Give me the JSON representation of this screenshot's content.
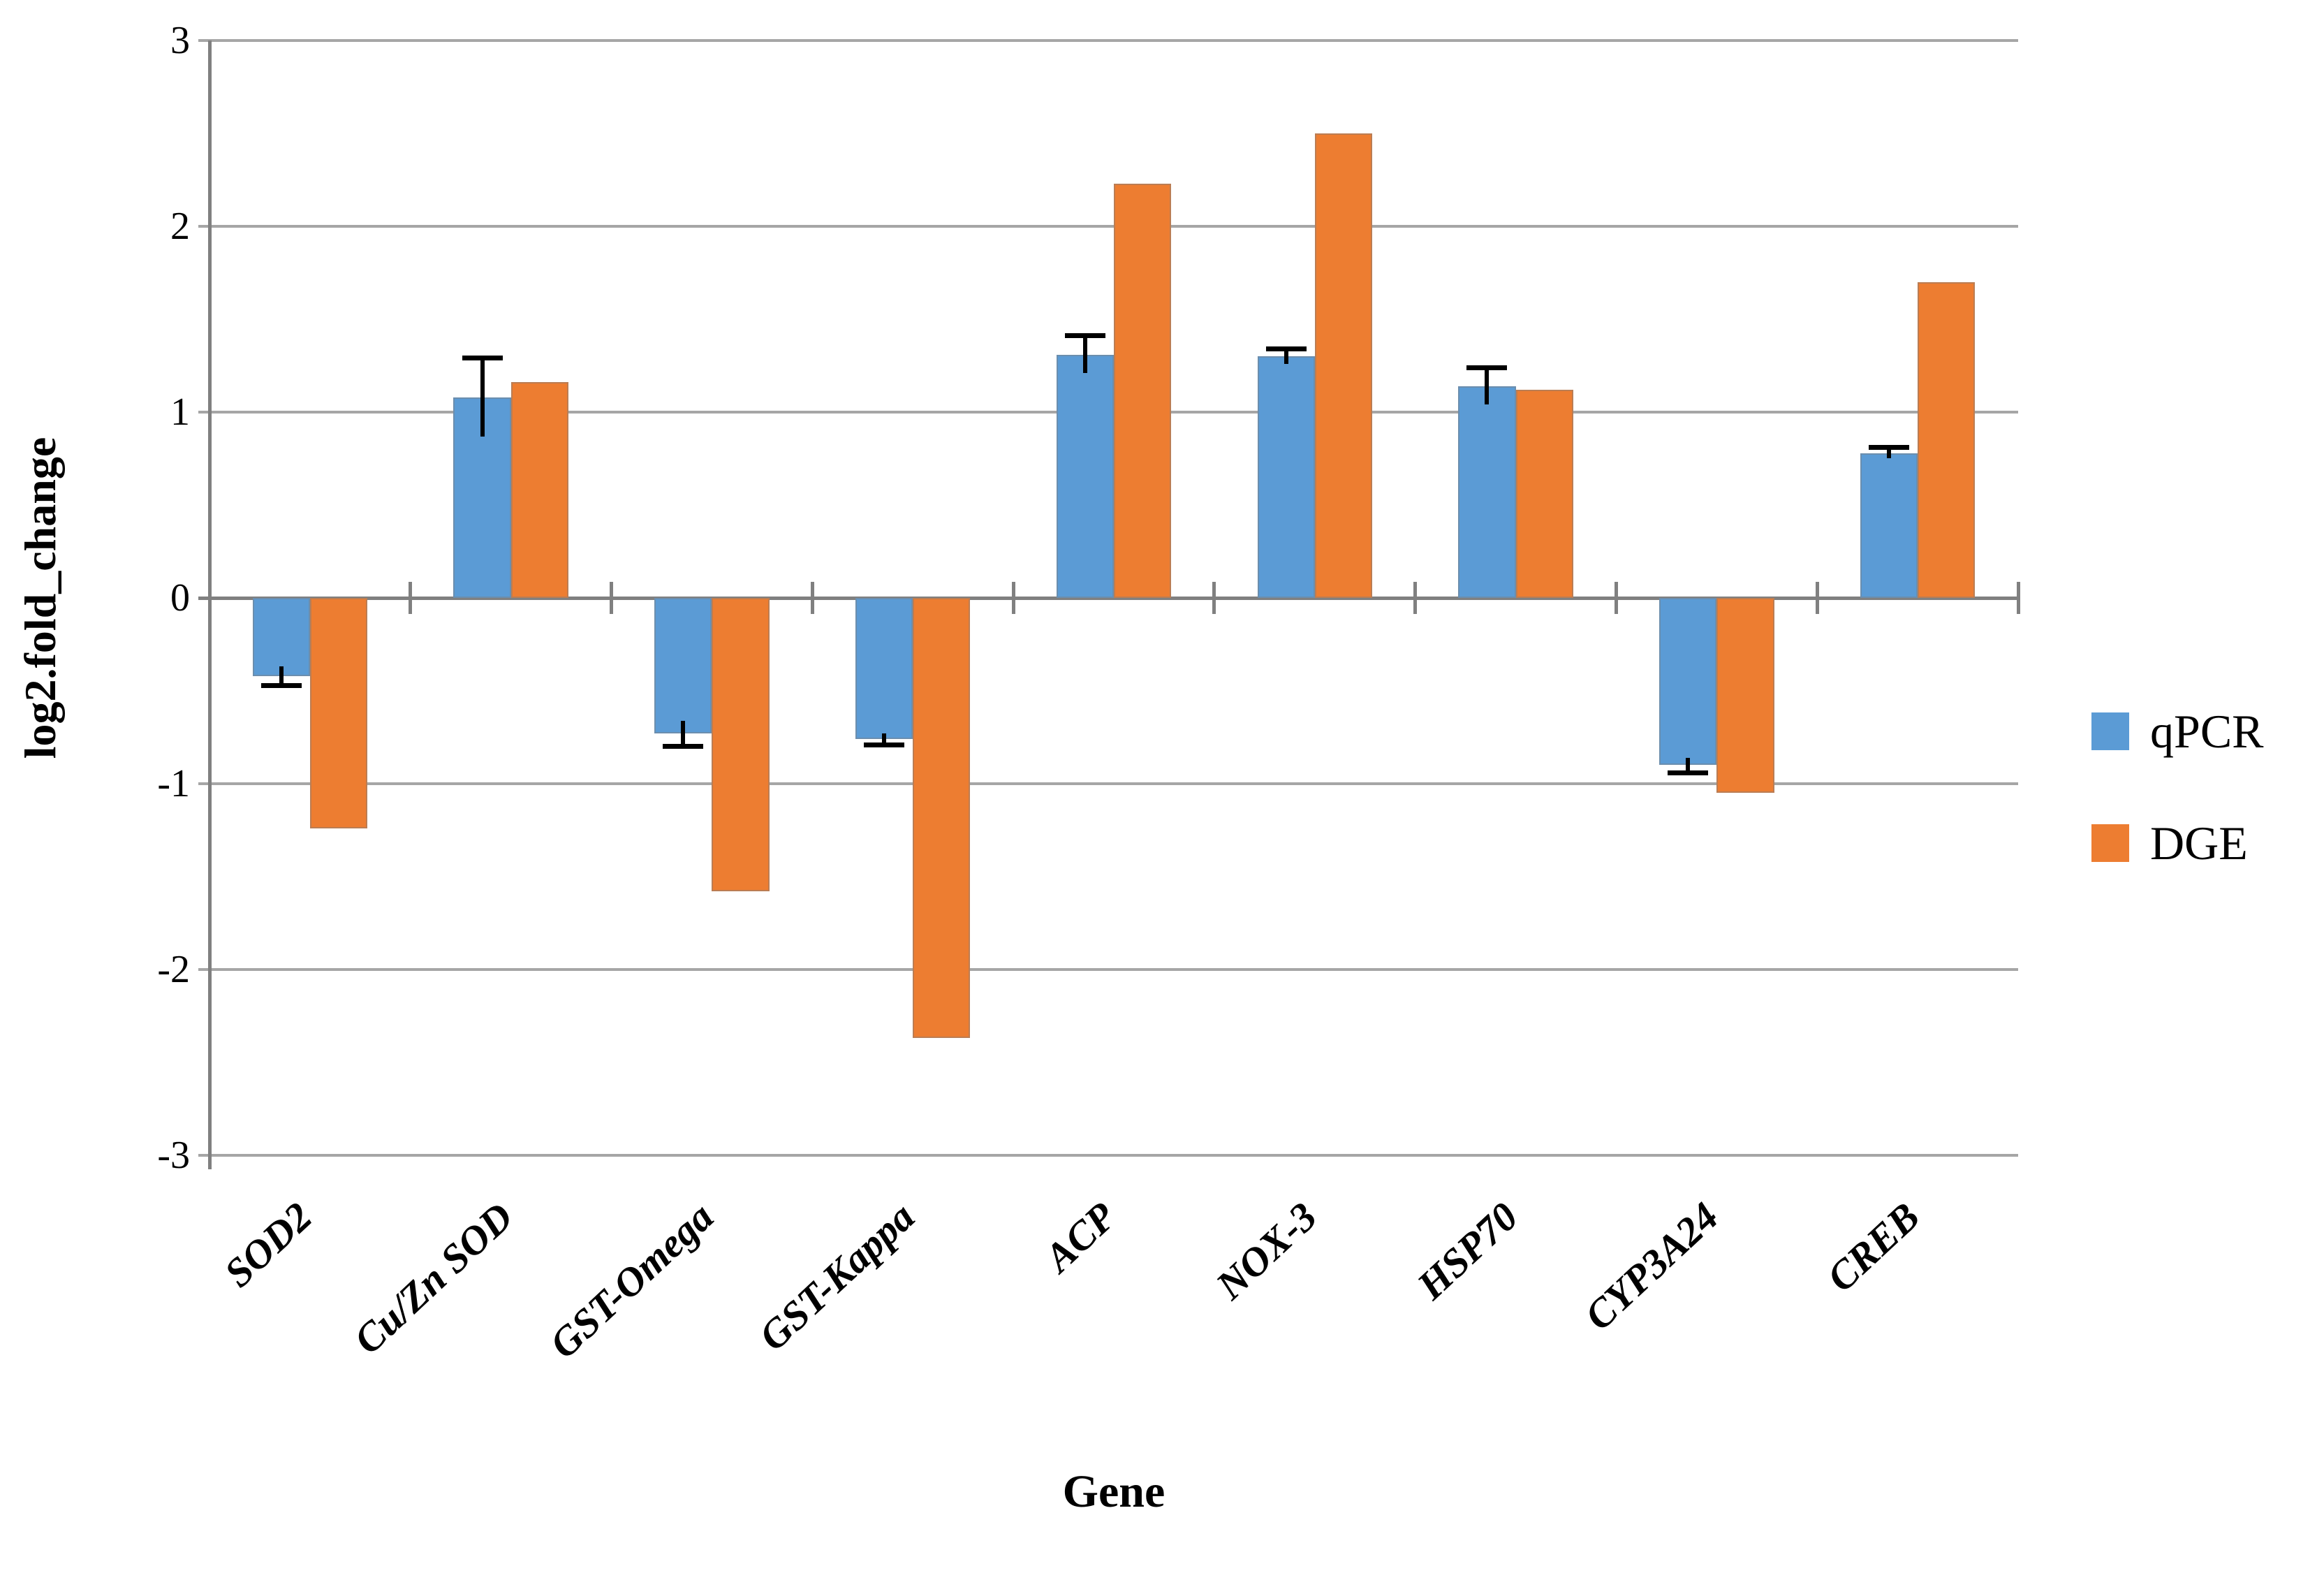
{
  "chart_data": {
    "type": "bar",
    "title": "",
    "xlabel": "Gene",
    "ylabel": "log2.fold_change",
    "categories": [
      "SOD2",
      "Cu/Zn SOD",
      "GST-Omega",
      "GST-Kappa",
      "ACP",
      "NOX-3",
      "HSP70",
      "CYP3A24",
      "CREB"
    ],
    "series": [
      {
        "name": "qPCR",
        "color": "#5B9BD5",
        "values": [
          -0.42,
          1.08,
          -0.73,
          -0.76,
          1.31,
          1.3,
          1.14,
          -0.9,
          0.78
        ],
        "errors": [
          0.05,
          0.21,
          0.07,
          0.03,
          0.1,
          0.04,
          0.1,
          0.04,
          0.03
        ]
      },
      {
        "name": "DGE",
        "color": "#ED7D31",
        "values": [
          -1.24,
          1.16,
          -1.58,
          -2.37,
          2.23,
          2.5,
          1.12,
          -1.05,
          1.7
        ],
        "errors": null
      }
    ],
    "ylim": [
      -3,
      3
    ],
    "ytick_step": 1,
    "ytick_labels": [
      "3",
      "2",
      "1",
      "0",
      "-1",
      "-2",
      "-3"
    ],
    "grid": true,
    "legend_position": "right",
    "gridline_color": "#A6A6A6",
    "axis_color": "#808080",
    "error_bar_color": "#000000",
    "background_color": "#FFFFFF"
  }
}
